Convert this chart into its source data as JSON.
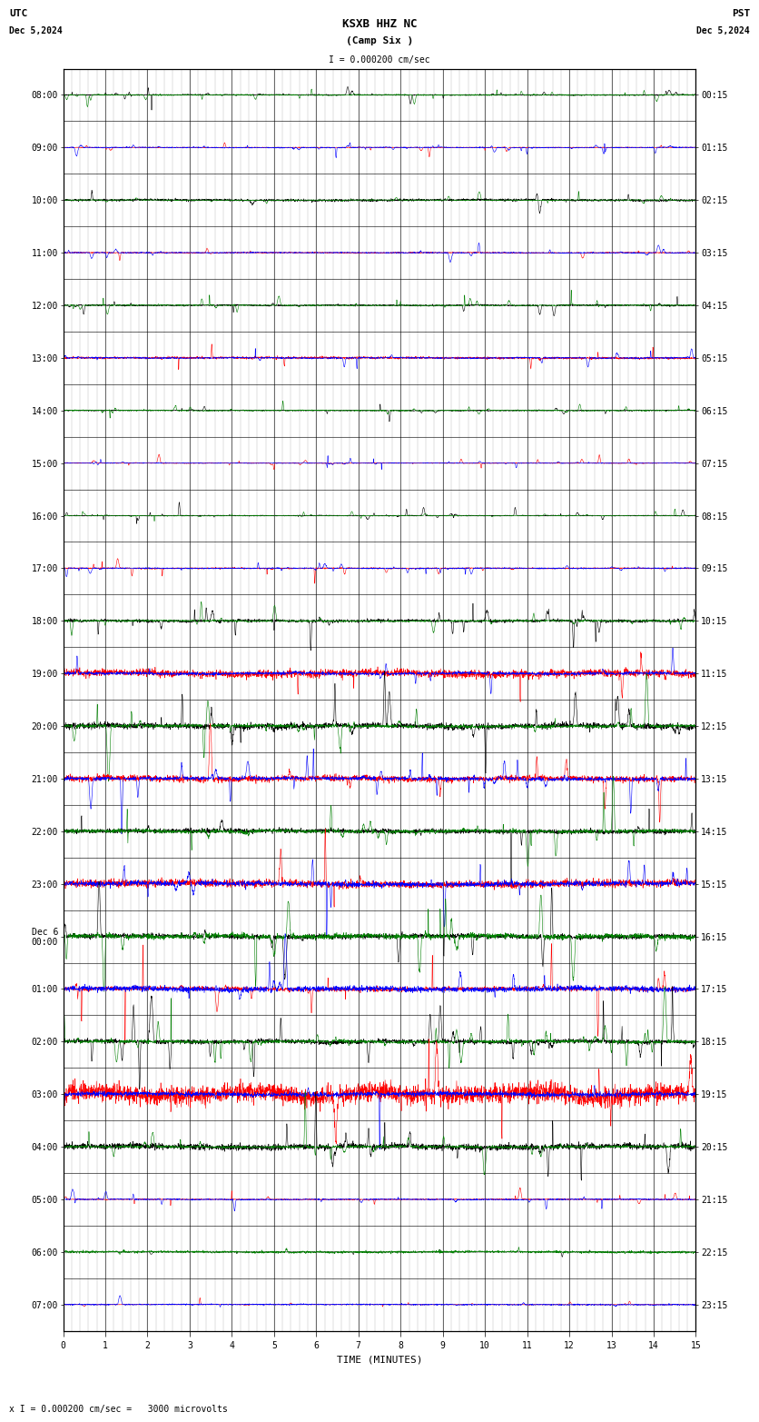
{
  "title_line1": "KSXB HHZ NC",
  "title_line2": "(Camp Six )",
  "scale_text": "I = 0.000200 cm/sec",
  "utc_label": "UTC",
  "utc_date": "Dec 5,2024",
  "pst_label": "PST",
  "pst_date": "Dec 5,2024",
  "footer_text": "x I = 0.000200 cm/sec =   3000 microvolts",
  "xlabel": "TIME (MINUTES)",
  "xticks": [
    0,
    1,
    2,
    3,
    4,
    5,
    6,
    7,
    8,
    9,
    10,
    11,
    12,
    13,
    14,
    15
  ],
  "time_minutes": 15,
  "trace_colors": [
    "black",
    "green",
    "red",
    "blue"
  ],
  "bg_color": "#ffffff",
  "plot_bg": "#ffffff",
  "left_times_utc": [
    "08:00",
    "09:00",
    "10:00",
    "11:00",
    "12:00",
    "13:00",
    "14:00",
    "15:00",
    "16:00",
    "17:00",
    "18:00",
    "19:00",
    "20:00",
    "21:00",
    "22:00",
    "23:00",
    "Dec 6\n00:00",
    "01:00",
    "02:00",
    "03:00",
    "04:00",
    "05:00",
    "06:00",
    "07:00"
  ],
  "right_times_pst": [
    "00:15",
    "01:15",
    "02:15",
    "03:15",
    "04:15",
    "05:15",
    "06:15",
    "07:15",
    "08:15",
    "09:15",
    "10:15",
    "11:15",
    "12:15",
    "13:15",
    "14:15",
    "15:15",
    "16:15",
    "17:15",
    "18:15",
    "19:15",
    "20:15",
    "21:15",
    "22:15",
    "23:15"
  ],
  "num_rows": 24,
  "traces_per_row": 2,
  "amplitude_scale": 0.42,
  "trace_linewidth": 0.4,
  "font_size_ticks": 7,
  "font_size_title": 9,
  "font_size_labels": 7,
  "big_event_rows": [
    12,
    13,
    14,
    15,
    16,
    17,
    18,
    19,
    20
  ],
  "medium_event_rows": [
    10,
    11
  ],
  "small_event_rows": [
    22,
    23
  ],
  "special_green_row": 13,
  "special_red_row": 14,
  "special_blue_row": 16
}
